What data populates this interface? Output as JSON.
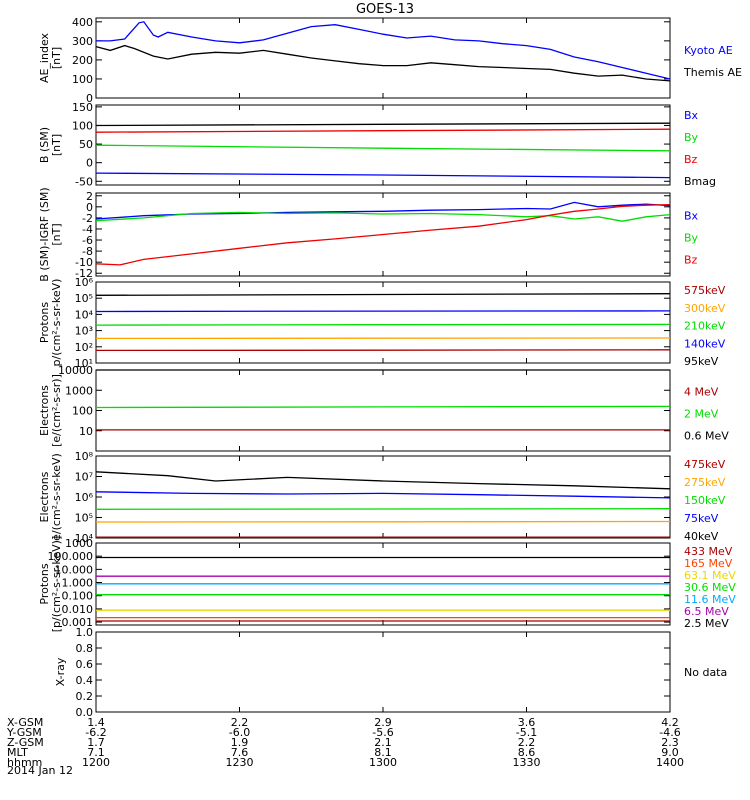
{
  "title": "GOES-13",
  "colors": {
    "black": "#000000",
    "blue": "#0000ff",
    "green": "#00dd00",
    "red": "#ee0000",
    "darkred": "#aa0000",
    "orange": "#ffa500",
    "yellow": "#e8d800",
    "cyan": "#00aaff",
    "purple": "#aa00aa"
  },
  "chart_data": [
    {
      "type": "line",
      "ylabel": [
        "AE_index",
        "[nT]"
      ],
      "ylim": [
        0,
        420
      ],
      "yticks": [
        "0",
        "100",
        "200",
        "300",
        "400"
      ],
      "ytick_values": [
        0,
        100,
        200,
        300,
        400
      ],
      "series": [
        {
          "name": "Kyoto AE",
          "color": "#0000ff",
          "x": [
            1200,
            1203,
            1206,
            1209,
            1210,
            1212,
            1213,
            1215,
            1220,
            1225,
            1230,
            1235,
            1240,
            1245,
            1250,
            1255,
            1300,
            1305,
            1310,
            1315,
            1320,
            1325,
            1330,
            1335,
            1340,
            1345,
            1350,
            1355,
            1400
          ],
          "values": [
            300,
            300,
            310,
            395,
            400,
            330,
            320,
            345,
            320,
            300,
            290,
            305,
            340,
            375,
            385,
            360,
            335,
            315,
            325,
            305,
            300,
            285,
            275,
            255,
            215,
            190,
            160,
            130,
            100
          ]
        },
        {
          "name": "Themis AE",
          "color": "#000000",
          "x": [
            1200,
            1203,
            1206,
            1208,
            1212,
            1215,
            1220,
            1225,
            1230,
            1235,
            1240,
            1245,
            1250,
            1255,
            1300,
            1305,
            1310,
            1315,
            1320,
            1325,
            1330,
            1335,
            1340,
            1345,
            1350,
            1355,
            1400
          ],
          "values": [
            270,
            250,
            275,
            260,
            220,
            205,
            230,
            240,
            235,
            250,
            230,
            210,
            195,
            180,
            170,
            170,
            185,
            175,
            165,
            160,
            155,
            150,
            130,
            115,
            120,
            100,
            90
          ]
        }
      ]
    },
    {
      "type": "line",
      "ylabel": [
        "B (SM)",
        "[nT]"
      ],
      "ylim": [
        -60,
        155
      ],
      "yticks": [
        "-50",
        "0",
        "50",
        "100",
        "150"
      ],
      "ytick_values": [
        -50,
        0,
        50,
        100,
        150
      ],
      "series": [
        {
          "name": "Bx",
          "color": "#0000ff",
          "x": [
            1200,
            1300,
            1400
          ],
          "values": [
            -28,
            -33,
            -40
          ]
        },
        {
          "name": "By",
          "color": "#00dd00",
          "x": [
            1200,
            1300,
            1400
          ],
          "values": [
            47,
            39,
            32
          ]
        },
        {
          "name": "Bz",
          "color": "#ee0000",
          "x": [
            1200,
            1300,
            1400
          ],
          "values": [
            82,
            86,
            90
          ]
        },
        {
          "name": "Bmag",
          "color": "#000000",
          "x": [
            1200,
            1300,
            1400
          ],
          "values": [
            100,
            103,
            106
          ]
        }
      ]
    },
    {
      "type": "line",
      "ylabel": [
        "B (SM)-IGRF (SM)",
        "[nT]"
      ],
      "ylim": [
        -12.5,
        2.5
      ],
      "yticks": [
        "-12",
        "-10",
        "-8",
        "-6",
        "-4",
        "-2",
        "0",
        "2"
      ],
      "ytick_values": [
        -12,
        -10,
        -8,
        -6,
        -4,
        -2,
        0,
        2
      ],
      "series": [
        {
          "name": "Bx",
          "color": "#0000ff",
          "x": [
            1200,
            1210,
            1220,
            1230,
            1240,
            1250,
            1300,
            1310,
            1320,
            1330,
            1335,
            1340,
            1345,
            1350,
            1355,
            1400
          ],
          "values": [
            -2.2,
            -1.6,
            -1.3,
            -1.2,
            -1.0,
            -0.9,
            -0.8,
            -0.6,
            -0.5,
            -0.3,
            -0.4,
            0.8,
            0.0,
            0.3,
            0.5,
            0.2
          ]
        },
        {
          "name": "By",
          "color": "#00dd00",
          "x": [
            1200,
            1210,
            1220,
            1230,
            1240,
            1250,
            1300,
            1310,
            1320,
            1330,
            1335,
            1340,
            1345,
            1350,
            1355,
            1400
          ],
          "values": [
            -2.5,
            -2.0,
            -1.2,
            -1.0,
            -1.2,
            -1.1,
            -1.3,
            -1.2,
            -1.4,
            -1.8,
            -1.6,
            -2.2,
            -1.8,
            -2.6,
            -1.8,
            -1.4
          ]
        },
        {
          "name": "Bz",
          "color": "#ee0000",
          "x": [
            1200,
            1205,
            1210,
            1220,
            1230,
            1240,
            1250,
            1300,
            1310,
            1320,
            1330,
            1335,
            1340,
            1345,
            1350,
            1355,
            1400
          ],
          "values": [
            -10.3,
            -10.5,
            -9.5,
            -8.5,
            -7.5,
            -6.5,
            -5.8,
            -5.0,
            -4.2,
            -3.5,
            -2.3,
            -1.5,
            -0.8,
            -0.4,
            0.1,
            0.3,
            0.4
          ]
        }
      ]
    },
    {
      "type": "line",
      "log": true,
      "ylabel": [
        "Protons",
        "p/(cm²-s-sr-keV)"
      ],
      "ylim": [
        10,
        1000000
      ],
      "yticks": [
        "10¹",
        "10²",
        "10³",
        "10⁴",
        "10⁵",
        "10⁶"
      ],
      "ytick_values": [
        10,
        100,
        1000,
        10000,
        100000,
        1000000
      ],
      "series": [
        {
          "name": "575keV",
          "color": "#aa0000",
          "x": [
            1200,
            1300,
            1400
          ],
          "values": [
            60,
            62,
            65
          ]
        },
        {
          "name": "300keV",
          "color": "#ffa500",
          "x": [
            1200,
            1300,
            1400
          ],
          "values": [
            330,
            340,
            350
          ]
        },
        {
          "name": "210keV",
          "color": "#00dd00",
          "x": [
            1200,
            1300,
            1400
          ],
          "values": [
            2200,
            2300,
            2400
          ]
        },
        {
          "name": "140keV",
          "color": "#0000ff",
          "x": [
            1200,
            1300,
            1400
          ],
          "values": [
            15000,
            16000,
            16500
          ]
        },
        {
          "name": "95keV",
          "color": "#000000",
          "x": [
            1200,
            1300,
            1400
          ],
          "values": [
            150000,
            170000,
            190000
          ]
        }
      ]
    },
    {
      "type": "line",
      "log": true,
      "ylabel": [
        "Electrons",
        "[e/(cm²-s-sr)]"
      ],
      "ylim": [
        1,
        10000
      ],
      "yticks": [
        "10",
        "100",
        "1000",
        "10000"
      ],
      "ytick_values": [
        10,
        100,
        1000,
        10000
      ],
      "series": [
        {
          "name": "4 MeV",
          "color": "#aa0000",
          "x": [
            1200,
            1300,
            1400
          ],
          "values": [
            11,
            11,
            11
          ]
        },
        {
          "name": "2 MeV",
          "color": "#00dd00",
          "x": [
            1200,
            1300,
            1400
          ],
          "values": [
            140,
            150,
            160
          ]
        },
        {
          "name": "0.6 MeV",
          "color": "#000000",
          "x": [
            1200,
            1300,
            1400
          ],
          "values": [
            11000,
            11000,
            11000
          ]
        }
      ]
    },
    {
      "type": "line",
      "log": true,
      "ylabel": [
        "Electrons",
        "e/(cm²-s-sr-keV)"
      ],
      "ylim": [
        10000,
        100000000
      ],
      "yticks": [
        "10⁴",
        "10⁵",
        "10⁶",
        "10⁷",
        "10⁸"
      ],
      "ytick_values": [
        10000,
        100000,
        1000000,
        10000000,
        100000000
      ],
      "series": [
        {
          "name": "475keV",
          "color": "#aa0000",
          "x": [
            1200,
            1300,
            1400
          ],
          "values": [
            11000,
            11000,
            11000
          ]
        },
        {
          "name": "275keV",
          "color": "#ffa500",
          "x": [
            1200,
            1300,
            1400
          ],
          "values": [
            60000,
            62000,
            64000
          ]
        },
        {
          "name": "150keV",
          "color": "#00dd00",
          "x": [
            1200,
            1300,
            1400
          ],
          "values": [
            250000,
            260000,
            270000
          ]
        },
        {
          "name": "75keV",
          "color": "#0000ff",
          "x": [
            1200,
            1220,
            1240,
            1300,
            1320,
            1340,
            1400
          ],
          "values": [
            1800000,
            1500000,
            1400000,
            1500000,
            1300000,
            1100000,
            900000
          ]
        },
        {
          "name": "40keV",
          "color": "#000000",
          "x": [
            1200,
            1215,
            1225,
            1240,
            1300,
            1320,
            1340,
            1400
          ],
          "values": [
            17000000,
            11000000,
            6000000,
            9000000,
            6000000,
            4500000,
            3500000,
            2500000
          ]
        }
      ]
    },
    {
      "type": "line",
      "log": true,
      "ylabel": [
        "Protons",
        "[p/(cm²-s-sr-keV)]"
      ],
      "ylim": [
        0.0006,
        1000
      ],
      "yticks": [
        "0.001",
        "0.010",
        "0.100",
        "1.000",
        "10.000",
        "100.000",
        "1000"
      ],
      "ytick_values": [
        0.001,
        0.01,
        0.1,
        1,
        10,
        100,
        1000
      ],
      "series": [
        {
          "name": "433 MeV",
          "color": "#aa0000",
          "x": [
            1200,
            1400
          ],
          "values": [
            0.0012,
            0.0012
          ]
        },
        {
          "name": "165 MeV",
          "color": "#ff4400",
          "x": [
            1200,
            1400
          ],
          "values": [
            0.0022,
            0.0022
          ]
        },
        {
          "name": "63.1 MeV",
          "color": "#e8d800",
          "x": [
            1200,
            1400
          ],
          "values": [
            0.008,
            0.008
          ]
        },
        {
          "name": "30.6 MeV",
          "color": "#00dd00",
          "x": [
            1200,
            1400
          ],
          "values": [
            0.12,
            0.12
          ]
        },
        {
          "name": "11.6 MeV",
          "color": "#00aaff",
          "x": [
            1200,
            1400
          ],
          "values": [
            0.8,
            0.8
          ]
        },
        {
          "name": "6.5 MeV",
          "color": "#aa00aa",
          "x": [
            1200,
            1400
          ],
          "values": [
            3.0,
            3.0
          ]
        },
        {
          "name": "2.5 MeV",
          "color": "#000000",
          "x": [
            1200,
            1400
          ],
          "values": [
            80,
            80
          ]
        }
      ]
    },
    {
      "type": "line",
      "ylabel": [
        "X-ray"
      ],
      "ylim": [
        0,
        1
      ],
      "yticks": [
        "0.0",
        "0.2",
        "0.4",
        "0.6",
        "0.8",
        "1.0"
      ],
      "ytick_values": [
        0,
        0.2,
        0.4,
        0.6,
        0.8,
        1.0
      ],
      "note": "No data",
      "series": []
    }
  ],
  "xaxis": {
    "range": [
      1200,
      1400
    ],
    "tick_values": [
      1200,
      1230,
      1300,
      1330,
      1400
    ],
    "rows": [
      {
        "label": "X-GSM",
        "values": [
          "1.4",
          "2.2",
          "2.9",
          "3.6",
          "4.2"
        ]
      },
      {
        "label": "Y-GSM",
        "values": [
          "-6.2",
          "-6.0",
          "-5.6",
          "-5.1",
          "-4.6"
        ]
      },
      {
        "label": "Z-GSM",
        "values": [
          "1.7",
          "1.9",
          "2.1",
          "2.2",
          "2.3"
        ]
      },
      {
        "label": "MLT",
        "values": [
          "7.1",
          "7.6",
          "8.1",
          "8.6",
          "9.0"
        ]
      },
      {
        "label": "hhmm",
        "values": [
          "1200",
          "1230",
          "1300",
          "1330",
          "1400"
        ]
      }
    ],
    "date": "2014 Jan 12"
  }
}
